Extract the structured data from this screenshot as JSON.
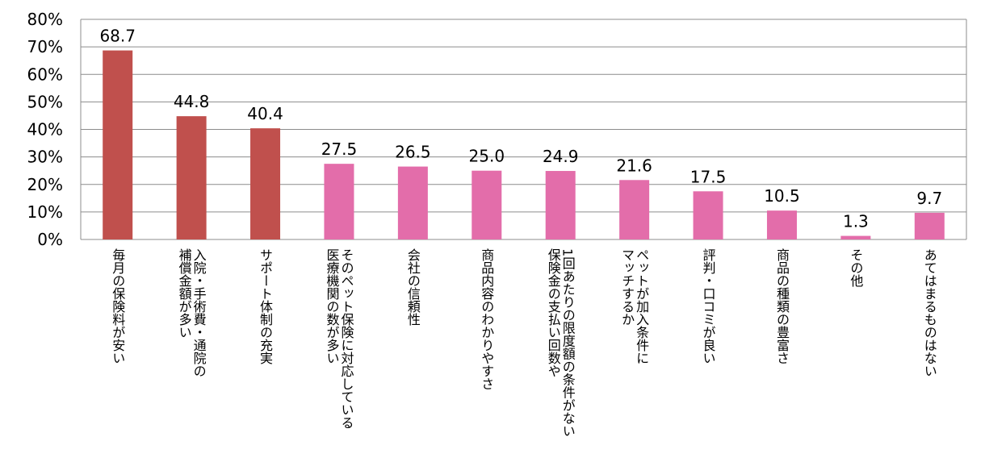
{
  "chart_data": {
    "type": "bar",
    "title": "",
    "xlabel": "",
    "ylabel": "",
    "ylim": [
      0,
      80
    ],
    "yticks": [
      "0%",
      "10%",
      "20%",
      "30%",
      "40%",
      "50%",
      "60%",
      "70%",
      "80%"
    ],
    "grid": true,
    "colors": {
      "highlight": "#C0504D",
      "normal": "#E36DAA",
      "grid": "#8C8C8C",
      "axis": "#8C8C8C"
    },
    "highlight_count": 3,
    "categories": [
      [
        "毎月の保険料が安い"
      ],
      [
        "入院・手術費・通院の",
        "補償金額が多い"
      ],
      [
        "サポート体制の充実"
      ],
      [
        "そのペット保険に対応している",
        "医療機関の数が多い"
      ],
      [
        "会社の信頼性"
      ],
      [
        "商品内容のわかりやすさ"
      ],
      [
        "1回あたりの限度額の条件がない",
        "保険金の支払い回数や"
      ],
      [
        "ペットが加入条件に",
        "マッチするか"
      ],
      [
        "評判・口コミが良い"
      ],
      [
        "商品の種類の豊富さ"
      ],
      [
        "その他"
      ],
      [
        "あてはまるものはない"
      ]
    ],
    "values": [
      68.7,
      44.8,
      40.4,
      27.5,
      26.5,
      25.0,
      24.9,
      21.6,
      17.5,
      10.5,
      1.3,
      9.7
    ],
    "value_labels": [
      "68.7",
      "44.8",
      "40.4",
      "27.5",
      "26.5",
      "25.0",
      "24.9",
      "21.6",
      "17.5",
      "10.5",
      "1.3",
      "9.7"
    ]
  }
}
